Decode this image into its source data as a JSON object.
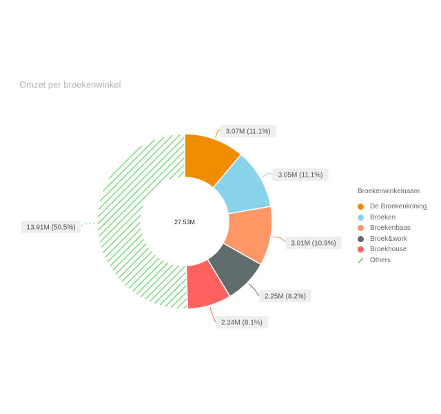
{
  "chart_data": {
    "type": "donut",
    "title": "Omzet per broekenwinkel",
    "center_label": "27.53M",
    "legend_title": "Broekenwinkelnaam",
    "legend_position": "right",
    "slices": [
      {
        "name": "De Broekenkoning",
        "value": 3.07,
        "label": "3.07M (11.1%)",
        "color": "#F08C00"
      },
      {
        "name": "Broeken",
        "value": 3.05,
        "label": "3.05M (11.1%)",
        "color": "#8AD4EB"
      },
      {
        "name": "Broekenbaas",
        "value": 3.01,
        "label": "3.01M (10.9%)",
        "color": "#FE9666"
      },
      {
        "name": "Broek&work",
        "value": 2.25,
        "label": "2.25M (8.2%)",
        "color": "#5F6B6D"
      },
      {
        "name": "Broekhouse",
        "value": 2.24,
        "label": "2.24M (8.1%)",
        "color": "#FD625E"
      },
      {
        "name": "Others",
        "value": 13.91,
        "label": "13.91M (50.5%)",
        "color": "#7ED67E",
        "pattern": "hatch"
      }
    ]
  }
}
